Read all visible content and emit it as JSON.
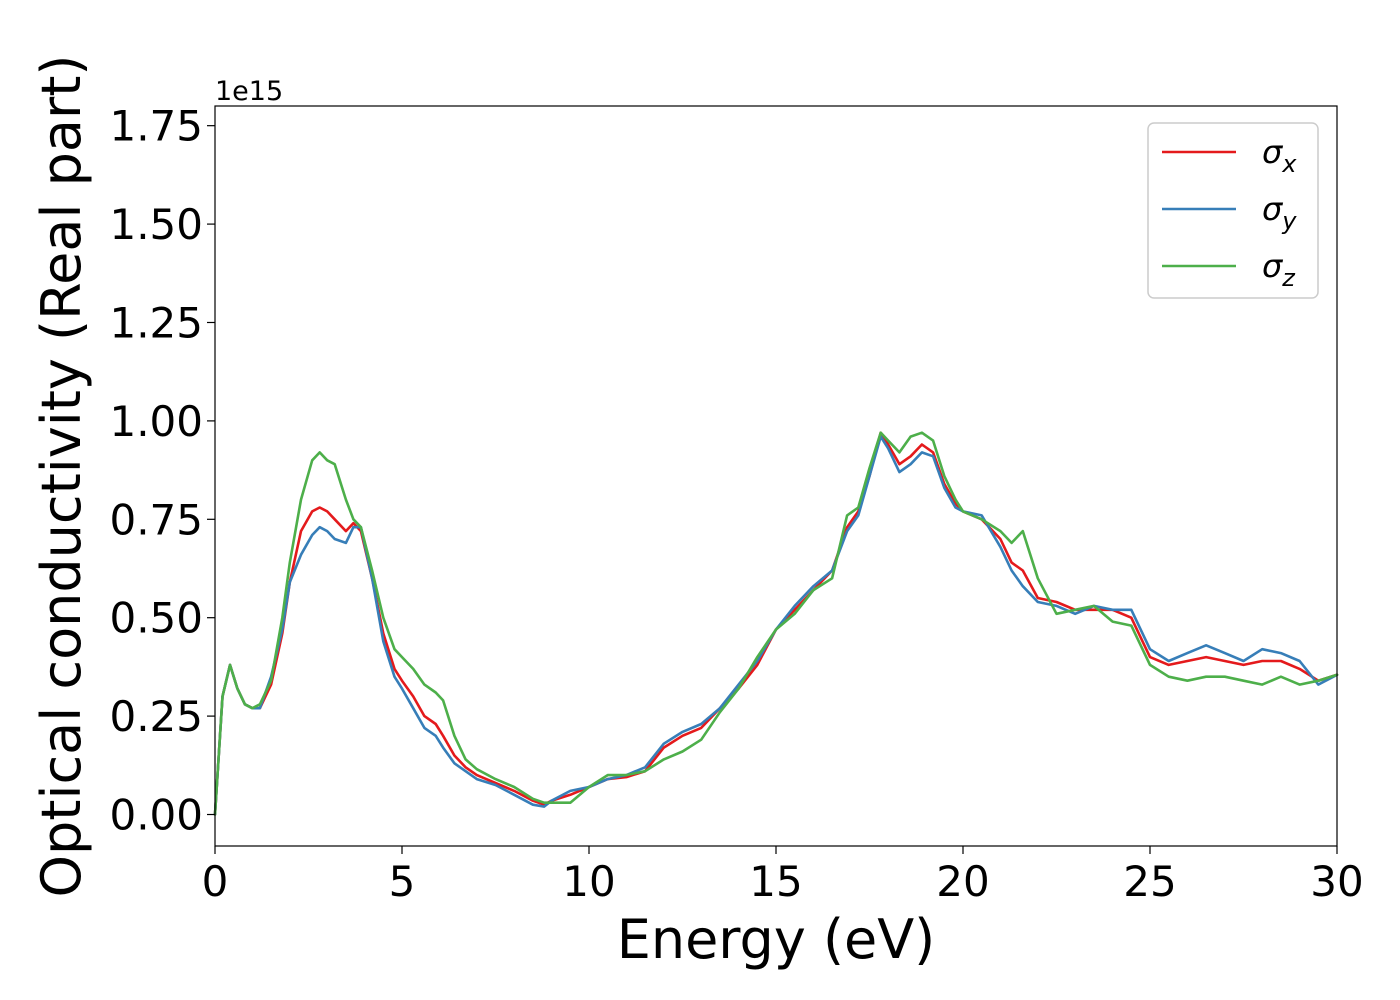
{
  "chart_data": {
    "type": "line",
    "title": "",
    "xlabel": "Energy (eV)",
    "ylabel": "Optical conductivity (Real part)",
    "y_offset_label": "1e15",
    "xlim": [
      0,
      30
    ],
    "ylim": [
      -0.08,
      1.8
    ],
    "xticks": [
      0,
      5,
      10,
      15,
      20,
      25,
      30
    ],
    "xtick_labels": [
      "0",
      "5",
      "10",
      "15",
      "20",
      "25",
      "30"
    ],
    "yticks": [
      0.0,
      0.25,
      0.5,
      0.75,
      1.0,
      1.25,
      1.5,
      1.75
    ],
    "ytick_labels": [
      "0.00",
      "0.25",
      "0.50",
      "0.75",
      "1.00",
      "1.25",
      "1.50",
      "1.75"
    ],
    "grid": false,
    "legend_position": "top-right",
    "x": [
      0,
      0.2,
      0.4,
      0.6,
      0.8,
      1.0,
      1.2,
      1.5,
      1.8,
      2.0,
      2.3,
      2.6,
      2.8,
      3.0,
      3.2,
      3.5,
      3.7,
      3.9,
      4.2,
      4.5,
      4.8,
      5.0,
      5.3,
      5.6,
      5.9,
      6.1,
      6.4,
      6.7,
      7.0,
      7.5,
      8.0,
      8.5,
      8.8,
      9.0,
      9.5,
      10.0,
      10.5,
      11.0,
      11.5,
      12.0,
      12.5,
      13.0,
      13.5,
      14.0,
      14.5,
      15.0,
      15.5,
      16.0,
      16.5,
      16.9,
      17.2,
      17.5,
      17.8,
      18.0,
      18.3,
      18.6,
      18.9,
      19.2,
      19.5,
      19.8,
      20.0,
      20.5,
      21.0,
      21.3,
      21.6,
      22.0,
      22.5,
      23.0,
      23.5,
      24.0,
      24.5,
      25.0,
      25.5,
      26.0,
      26.5,
      27.0,
      27.5,
      28.0,
      28.5,
      29.0,
      29.5,
      30.0
    ],
    "series": [
      {
        "name": "σx",
        "color": "#e41a1c",
        "values": [
          0.0,
          0.3,
          0.38,
          0.32,
          0.28,
          0.27,
          0.27,
          0.33,
          0.46,
          0.59,
          0.72,
          0.77,
          0.78,
          0.77,
          0.75,
          0.72,
          0.74,
          0.72,
          0.6,
          0.46,
          0.37,
          0.34,
          0.3,
          0.25,
          0.23,
          0.2,
          0.15,
          0.12,
          0.1,
          0.08,
          0.06,
          0.035,
          0.025,
          0.035,
          0.05,
          0.07,
          0.09,
          0.095,
          0.11,
          0.17,
          0.2,
          0.22,
          0.27,
          0.32,
          0.38,
          0.47,
          0.52,
          0.57,
          0.62,
          0.73,
          0.77,
          0.86,
          0.97,
          0.94,
          0.89,
          0.91,
          0.94,
          0.92,
          0.84,
          0.79,
          0.77,
          0.75,
          0.7,
          0.64,
          0.62,
          0.55,
          0.54,
          0.52,
          0.52,
          0.52,
          0.5,
          0.4,
          0.38,
          0.39,
          0.4,
          0.39,
          0.38,
          0.39,
          0.39,
          0.37,
          0.34,
          0.355
        ]
      },
      {
        "name": "σy",
        "color": "#377eb8",
        "values": [
          0.0,
          0.3,
          0.38,
          0.32,
          0.28,
          0.27,
          0.27,
          0.35,
          0.47,
          0.59,
          0.66,
          0.71,
          0.73,
          0.72,
          0.7,
          0.69,
          0.73,
          0.73,
          0.6,
          0.44,
          0.35,
          0.32,
          0.27,
          0.22,
          0.2,
          0.17,
          0.13,
          0.11,
          0.09,
          0.075,
          0.05,
          0.025,
          0.02,
          0.035,
          0.06,
          0.07,
          0.09,
          0.1,
          0.12,
          0.18,
          0.21,
          0.23,
          0.27,
          0.33,
          0.39,
          0.47,
          0.53,
          0.58,
          0.62,
          0.72,
          0.76,
          0.86,
          0.96,
          0.93,
          0.87,
          0.89,
          0.92,
          0.91,
          0.83,
          0.78,
          0.77,
          0.76,
          0.68,
          0.62,
          0.58,
          0.54,
          0.53,
          0.51,
          0.53,
          0.52,
          0.52,
          0.42,
          0.39,
          0.41,
          0.43,
          0.41,
          0.39,
          0.42,
          0.41,
          0.39,
          0.33,
          0.355
        ]
      },
      {
        "name": "σz",
        "color": "#4daf4a",
        "values": [
          0.0,
          0.3,
          0.38,
          0.32,
          0.28,
          0.27,
          0.28,
          0.34,
          0.5,
          0.64,
          0.8,
          0.9,
          0.92,
          0.9,
          0.89,
          0.8,
          0.75,
          0.73,
          0.62,
          0.5,
          0.42,
          0.4,
          0.37,
          0.33,
          0.31,
          0.29,
          0.2,
          0.14,
          0.115,
          0.09,
          0.07,
          0.04,
          0.03,
          0.03,
          0.03,
          0.07,
          0.1,
          0.1,
          0.11,
          0.14,
          0.16,
          0.19,
          0.26,
          0.32,
          0.4,
          0.47,
          0.51,
          0.57,
          0.6,
          0.76,
          0.78,
          0.88,
          0.97,
          0.95,
          0.92,
          0.96,
          0.97,
          0.95,
          0.86,
          0.8,
          0.77,
          0.75,
          0.72,
          0.69,
          0.72,
          0.6,
          0.51,
          0.52,
          0.53,
          0.49,
          0.48,
          0.38,
          0.35,
          0.34,
          0.35,
          0.35,
          0.34,
          0.33,
          0.35,
          0.33,
          0.34,
          0.355
        ]
      }
    ]
  }
}
